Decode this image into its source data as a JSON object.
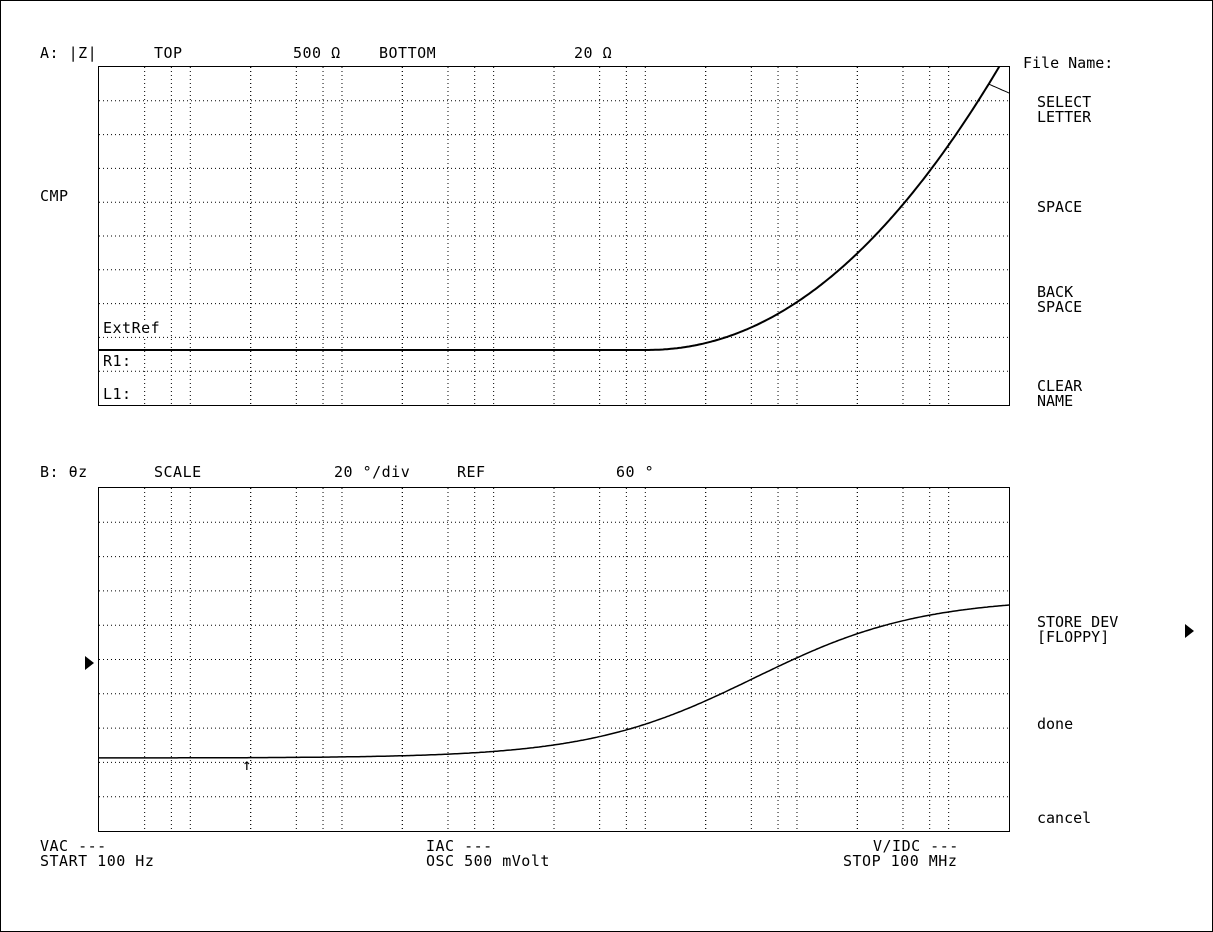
{
  "trace_a": {
    "label": "A: |Z|",
    "top_label": "TOP",
    "top_value": "500 Ω",
    "bottom_label": "BOTTOM",
    "bottom_value": "20 Ω",
    "cmp_label": "CMP",
    "extref_label": "ExtRef",
    "r1_label": "R1:",
    "l1_label": "L1:"
  },
  "trace_b": {
    "label": "B: θz",
    "scale_label": "SCALE",
    "scale_value": "20 °/div",
    "ref_label": "REF",
    "ref_value": "60 °",
    "marker_glyph": "↑"
  },
  "footer": {
    "vac": "VAC ---",
    "start": "START 100 Hz",
    "iac": "IAC ---",
    "osc": "OSC 500 mVolt",
    "vidc": "V/IDC ---",
    "stop": "STOP 100 MHz"
  },
  "softkeys": {
    "header": "File Name:",
    "select_letter_1": "SELECT",
    "select_letter_2": "LETTER",
    "space": "SPACE",
    "back_space_1": "BACK",
    "back_space_2": "SPACE",
    "clear_name_1": "CLEAR",
    "clear_name_2": "NAME",
    "store_dev_1": "STORE DEV",
    "store_dev_2": "[FLOPPY]",
    "done": "done",
    "cancel": "cancel"
  },
  "icons": {
    "ref_pointer": "triangle-right-icon",
    "store_dev_more": "triangle-right-icon",
    "marker": "up-arrow-icon"
  },
  "colors": {
    "background": "#ffffff",
    "trace": "#000000",
    "grid": "#000000"
  }
}
